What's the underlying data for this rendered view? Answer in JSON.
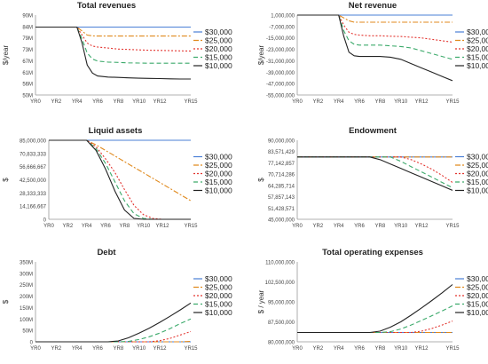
{
  "x_categories": [
    "YR0",
    "YR2",
    "YR4",
    "YR6",
    "YR8",
    "YR10",
    "YR12",
    "YR15"
  ],
  "legend": [
    "$30,000",
    "$25,000",
    "$20,000",
    "$15,000",
    "$10,000"
  ],
  "series_colors": [
    "#4a7fd6",
    "#e08a1e",
    "#e3342f",
    "#3caa6b",
    "#222222"
  ],
  "series_dash": [
    "none",
    "6 2 2 2",
    "2 2",
    "5 3",
    "none"
  ],
  "chart_data": [
    {
      "type": "line",
      "title": "Total revenues",
      "ylabel": "$/year",
      "yticks": [
        "90M",
        "84M",
        "79M",
        "73M",
        "67M",
        "61M",
        "56M",
        "50M"
      ],
      "ylim": [
        50,
        90
      ],
      "x": [
        0,
        1,
        2,
        3,
        4,
        4.5,
        5,
        5.5,
        6,
        7,
        8,
        9,
        10,
        11,
        12,
        13,
        14,
        15
      ],
      "series": [
        {
          "name": "$30,000",
          "values": [
            84,
            84,
            84,
            84,
            84,
            84,
            84,
            84,
            84,
            84,
            84,
            84,
            84,
            84,
            84,
            84,
            84,
            84
          ]
        },
        {
          "name": "$25,000",
          "values": [
            84,
            84,
            84,
            84,
            84,
            82,
            80,
            79.6,
            79.5,
            79.5,
            79.5,
            79.5,
            79.5,
            79.5,
            79.5,
            79.5,
            79.5,
            79.5
          ]
        },
        {
          "name": "$20,000",
          "values": [
            84,
            84,
            84,
            84,
            84,
            80,
            76,
            74.5,
            74,
            73.5,
            73,
            72.8,
            72.6,
            72.4,
            72.3,
            72.2,
            72.1,
            72
          ]
        },
        {
          "name": "$15,000",
          "values": [
            84,
            84,
            84,
            84,
            84,
            78,
            71,
            68,
            67,
            66.5,
            66.3,
            66.1,
            66,
            65.9,
            65.9,
            65.9,
            65.9,
            65.9
          ]
        },
        {
          "name": "$10,000",
          "values": [
            84,
            84,
            84,
            84,
            84,
            76,
            65,
            61,
            59.5,
            59,
            58.8,
            58.6,
            58.4,
            58.3,
            58.2,
            58.1,
            58,
            58
          ]
        }
      ]
    },
    {
      "type": "line",
      "title": "Net revenue",
      "ylabel": "$/year",
      "yticks": [
        "1,000,000",
        "-7,000,000",
        "-15,000,000",
        "-23,000,000",
        "-31,000,000",
        "-39,000,000",
        "-47,000,000",
        "-55,000,000"
      ],
      "ylim": [
        -55,
        1
      ],
      "x": [
        0,
        1,
        2,
        3,
        4,
        4.5,
        5,
        5.5,
        6,
        7,
        8,
        9,
        10,
        11,
        12,
        13,
        14,
        15
      ],
      "series": [
        {
          "name": "$30,000",
          "values": [
            1,
            1,
            1,
            1,
            1,
            1,
            1,
            1,
            1,
            1,
            1,
            1,
            1,
            1,
            1,
            1,
            1,
            1
          ]
        },
        {
          "name": "$25,000",
          "values": [
            1,
            1,
            1,
            1,
            1,
            -1,
            -3,
            -4,
            -4,
            -4,
            -4,
            -4,
            -4,
            -4,
            -4,
            -4,
            -4,
            -4
          ]
        },
        {
          "name": "$20,000",
          "values": [
            1,
            1,
            1,
            1,
            1,
            -6,
            -11,
            -12.5,
            -13,
            -13.5,
            -13.5,
            -13.8,
            -14,
            -14.5,
            -15,
            -16,
            -17,
            -18
          ]
        },
        {
          "name": "$15,000",
          "values": [
            1,
            1,
            1,
            1,
            1,
            -10,
            -17,
            -19.5,
            -20,
            -20,
            -20,
            -20.5,
            -21,
            -22,
            -24,
            -26,
            -28,
            -30
          ]
        },
        {
          "name": "$10,000",
          "values": [
            1,
            1,
            1,
            1,
            1,
            -14,
            -25,
            -27.5,
            -28,
            -28,
            -28,
            -28.5,
            -30,
            -33,
            -36,
            -39,
            -42,
            -45
          ]
        }
      ]
    },
    {
      "type": "line",
      "title": "Liquid assets",
      "ylabel": "$",
      "yticks": [
        "85,000,000",
        "70,833,333",
        "56,666,667",
        "42,500,000",
        "28,333,333",
        "14,166,667",
        "0"
      ],
      "ylim": [
        0,
        85
      ],
      "x": [
        0,
        1,
        2,
        3,
        4,
        5,
        6,
        7,
        8,
        9,
        10,
        11,
        12,
        13,
        14,
        15
      ],
      "series": [
        {
          "name": "$30,000",
          "values": [
            85,
            85,
            85,
            85,
            85,
            85,
            85,
            85,
            85,
            85,
            85,
            85,
            85,
            85,
            85,
            85
          ]
        },
        {
          "name": "$25,000",
          "values": [
            85,
            85,
            85,
            85,
            85,
            80,
            74,
            68,
            62,
            56,
            50,
            44,
            38,
            32,
            26,
            20
          ]
        },
        {
          "name": "$20,000",
          "values": [
            85,
            85,
            85,
            85,
            85,
            78,
            65,
            50,
            32,
            15,
            5,
            1,
            0,
            0,
            0,
            0
          ]
        },
        {
          "name": "$15,000",
          "values": [
            85,
            85,
            85,
            85,
            85,
            76,
            60,
            40,
            20,
            6,
            1,
            0,
            0,
            0,
            0,
            0
          ]
        },
        {
          "name": "$10,000",
          "values": [
            85,
            85,
            85,
            85,
            85,
            74,
            54,
            30,
            10,
            1,
            0,
            0,
            0,
            0,
            0,
            0
          ]
        }
      ]
    },
    {
      "type": "line",
      "title": "Endowment",
      "ylabel": "$",
      "yticks": [
        "90,000,000",
        "83,571,429",
        "77,142,857",
        "70,714,286",
        "64,285,714",
        "57,857,143",
        "51,428,571",
        "45,000,000"
      ],
      "ylim": [
        45,
        90
      ],
      "x": [
        0,
        1,
        2,
        3,
        4,
        5,
        6,
        7,
        8,
        9,
        10,
        11,
        12,
        13,
        14,
        15
      ],
      "series": [
        {
          "name": "$30,000",
          "values": [
            80.5,
            80.5,
            80.5,
            80.5,
            80.5,
            80.5,
            80.5,
            80.5,
            80.5,
            80.5,
            80.5,
            80.5,
            80.5,
            80.5,
            80.5,
            80.5
          ]
        },
        {
          "name": "$25,000",
          "values": [
            80.5,
            80.5,
            80.5,
            80.5,
            80.5,
            80.5,
            80.5,
            80.5,
            80.5,
            80.5,
            80.5,
            80.5,
            80.5,
            80.5,
            80.5,
            80.5
          ]
        },
        {
          "name": "$20,000",
          "values": [
            80.5,
            80.5,
            80.5,
            80.5,
            80.5,
            80.5,
            80.5,
            80.5,
            80.5,
            80.5,
            80.5,
            79,
            76.5,
            73.5,
            70,
            66
          ]
        },
        {
          "name": "$15,000",
          "values": [
            80.5,
            80.5,
            80.5,
            80.5,
            80.5,
            80.5,
            80.5,
            80.5,
            80.5,
            80.5,
            78,
            75,
            72,
            69,
            66,
            63
          ]
        },
        {
          "name": "$10,000",
          "values": [
            80.5,
            80.5,
            80.5,
            80.5,
            80.5,
            80.5,
            80.5,
            80.5,
            79,
            76.5,
            74,
            71.5,
            69,
            66.5,
            64,
            61.5
          ]
        }
      ]
    },
    {
      "type": "line",
      "title": "Debt",
      "ylabel": "$",
      "yticks": [
        "350M",
        "300M",
        "250M",
        "200M",
        "150M",
        "100M",
        "50M",
        "0"
      ],
      "ylim": [
        0,
        350
      ],
      "x": [
        0,
        1,
        2,
        3,
        4,
        5,
        6,
        7,
        8,
        9,
        10,
        11,
        12,
        13,
        14,
        15
      ],
      "series": [
        {
          "name": "$30,000",
          "values": [
            0,
            0,
            0,
            0,
            0,
            0,
            0,
            0,
            0,
            0,
            0,
            0,
            0,
            0,
            0,
            0
          ]
        },
        {
          "name": "$25,000",
          "values": [
            0,
            0,
            0,
            0,
            0,
            0,
            0,
            0,
            0,
            0,
            0,
            0,
            0,
            0,
            0,
            2
          ]
        },
        {
          "name": "$20,000",
          "values": [
            0,
            0,
            0,
            0,
            0,
            0,
            0,
            0,
            0,
            0,
            0,
            0,
            5,
            15,
            30,
            45
          ]
        },
        {
          "name": "$15,000",
          "values": [
            0,
            0,
            0,
            0,
            0,
            0,
            0,
            0,
            0,
            2,
            10,
            22,
            38,
            58,
            80,
            100
          ]
        },
        {
          "name": "$10,000",
          "values": [
            0,
            0,
            0,
            0,
            0,
            0,
            0,
            0,
            4,
            18,
            38,
            60,
            85,
            112,
            140,
            170
          ]
        }
      ]
    },
    {
      "type": "line",
      "title": "Total operating expenses",
      "ylabel": "$ / year",
      "yticks": [
        "110,000,000",
        "102,500,000",
        "95,000,000",
        "87,500,000",
        "80,000,000"
      ],
      "ylim": [
        80,
        110
      ],
      "x": [
        0,
        1,
        2,
        3,
        4,
        5,
        6,
        7,
        8,
        9,
        10,
        11,
        12,
        13,
        14,
        15
      ],
      "series": [
        {
          "name": "$30,000",
          "values": [
            83.5,
            83.5,
            83.5,
            83.5,
            83.5,
            83.5,
            83.5,
            83.5,
            83.5,
            83.5,
            83.5,
            83.5,
            83.5,
            83.5,
            83.5,
            83.5
          ]
        },
        {
          "name": "$25,000",
          "values": [
            83.5,
            83.5,
            83.5,
            83.5,
            83.5,
            83.5,
            83.5,
            83.5,
            83.5,
            83.5,
            83.5,
            83.5,
            83.5,
            83.5,
            83.5,
            83.5
          ]
        },
        {
          "name": "$20,000",
          "values": [
            83.5,
            83.5,
            83.5,
            83.5,
            83.5,
            83.5,
            83.5,
            83.5,
            83.5,
            83.5,
            83.5,
            83.5,
            84,
            85,
            86.3,
            87.8
          ]
        },
        {
          "name": "$15,000",
          "values": [
            83.5,
            83.5,
            83.5,
            83.5,
            83.5,
            83.5,
            83.5,
            83.5,
            83.5,
            83.8,
            84.8,
            86.3,
            88,
            89.8,
            91.6,
            93.5
          ]
        },
        {
          "name": "$10,000",
          "values": [
            83.5,
            83.5,
            83.5,
            83.5,
            83.5,
            83.5,
            83.5,
            83.5,
            84,
            85.5,
            87.5,
            90,
            92.7,
            95.5,
            98.4,
            101.5
          ]
        }
      ]
    }
  ]
}
